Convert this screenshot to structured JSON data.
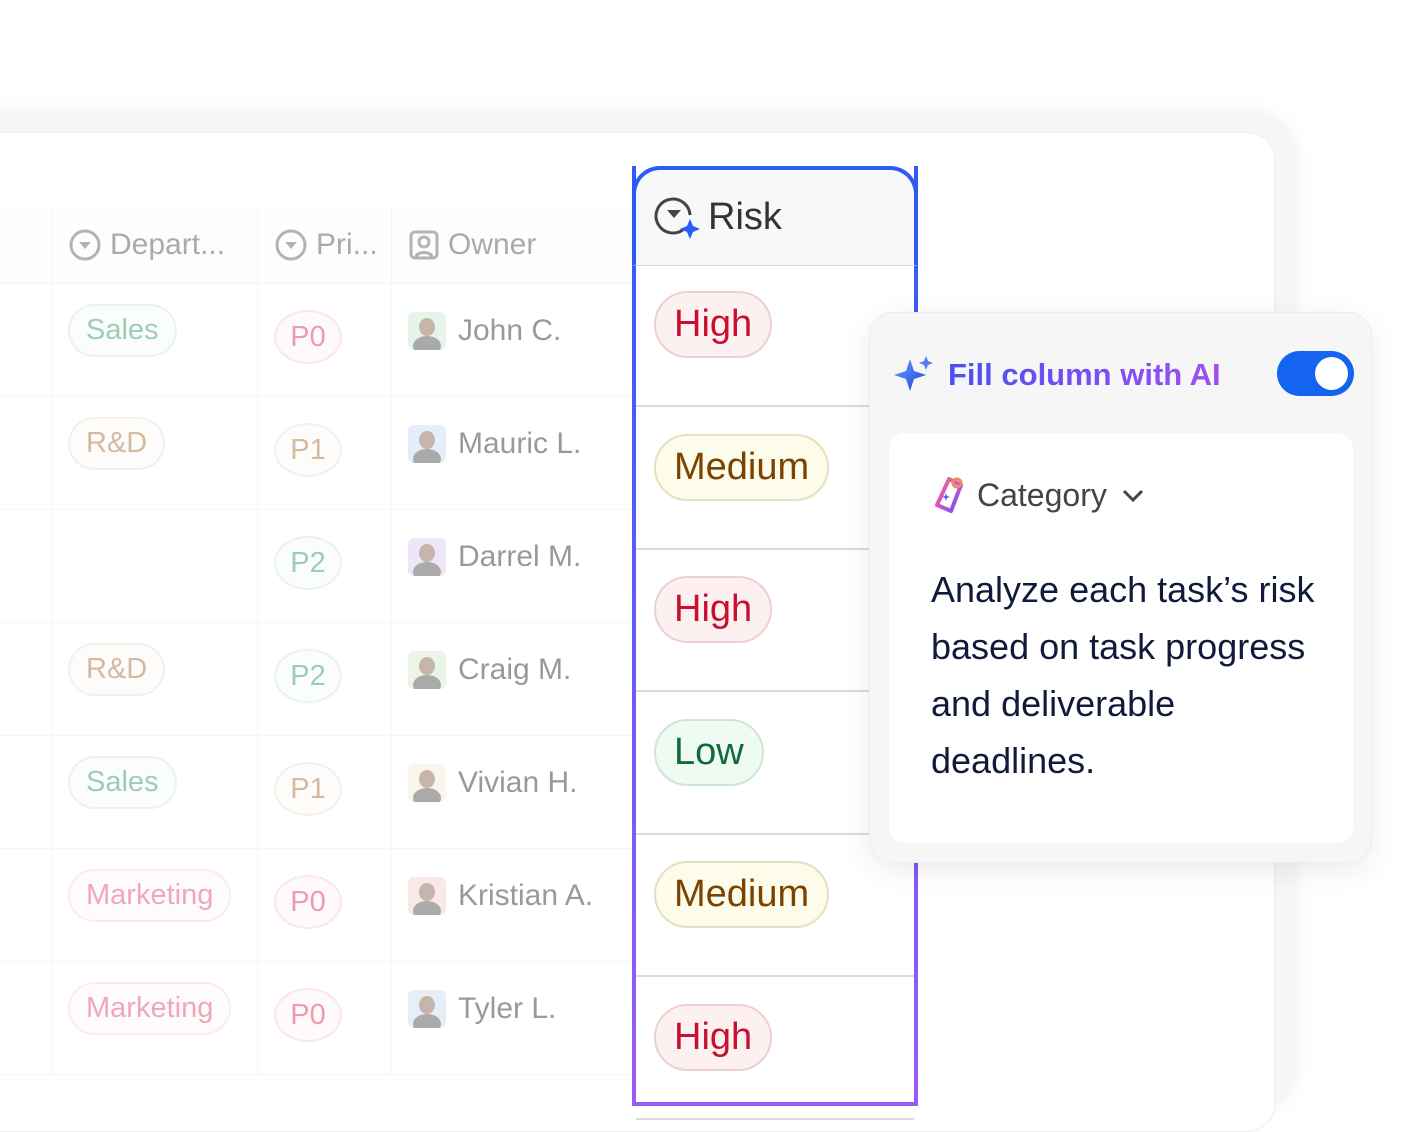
{
  "table": {
    "headers": [
      {
        "label": "Depart...",
        "icon": "dropdown-circle-icon"
      },
      {
        "label": "Pri...",
        "icon": "dropdown-circle-icon"
      },
      {
        "label": "Owner",
        "icon": "person-icon"
      }
    ],
    "rows": [
      {
        "department": "Sales",
        "dept_color": "#3a9a6a",
        "priority": "P0",
        "prio_color": "#d9385a",
        "owner": "John C.",
        "avatar_bg": "#cfe8d5"
      },
      {
        "department": "R&D",
        "dept_color": "#a8763e",
        "priority": "P1",
        "prio_color": "#a8763e",
        "owner": "Mauric L.",
        "avatar_bg": "#c8dcf5"
      },
      {
        "department": "",
        "dept_color": "#3a9a6a",
        "priority": "P2",
        "prio_color": "#3a9a6a",
        "owner": "Darrel M.",
        "avatar_bg": "#dccbf2"
      },
      {
        "department": "R&D",
        "dept_color": "#a8763e",
        "priority": "P2",
        "prio_color": "#3a9a6a",
        "owner": "Craig M.",
        "avatar_bg": "#d8e6d0"
      },
      {
        "department": "Sales",
        "dept_color": "#3a9a6a",
        "priority": "P1",
        "prio_color": "#a8763e",
        "owner": "Vivian H.",
        "avatar_bg": "#f2ead8"
      },
      {
        "department": "Marketing",
        "dept_color": "#e0506e",
        "priority": "P0",
        "prio_color": "#d9385a",
        "owner": "Kristian A.",
        "avatar_bg": "#f5d0d0"
      },
      {
        "department": "Marketing",
        "dept_color": "#e0506e",
        "priority": "P0",
        "prio_color": "#d9385a",
        "owner": "Tyler L.",
        "avatar_bg": "#d0dcf0"
      }
    ]
  },
  "risk": {
    "header": "Risk",
    "values": [
      {
        "label": "High",
        "color": "#c8102e",
        "bg": "#fdf0f1",
        "border": "#ecd0d4"
      },
      {
        "label": "Medium",
        "color": "#7a4300",
        "bg": "#fdfbea",
        "border": "#e6e0c0"
      },
      {
        "label": "High",
        "color": "#c8102e",
        "bg": "#fdf0f1",
        "border": "#ecd0d4"
      },
      {
        "label": "Low",
        "color": "#116b38",
        "bg": "#eefaf2",
        "border": "#cde6d6"
      },
      {
        "label": "Medium",
        "color": "#7a4300",
        "bg": "#fdfbea",
        "border": "#e6e0c0"
      },
      {
        "label": "High",
        "color": "#c8102e",
        "bg": "#fdf0f1",
        "border": "#ecd0d4"
      }
    ]
  },
  "ai_panel": {
    "title": "Fill column with AI",
    "toggle_on": true,
    "category": "Category",
    "prompt": "Analyze each task’s risk based on task progress and deliverable deadlines."
  }
}
